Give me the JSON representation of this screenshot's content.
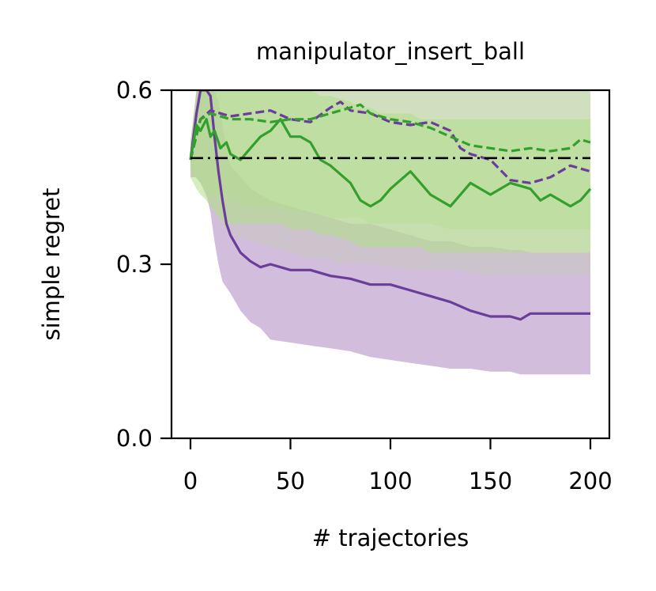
{
  "chart_data": {
    "type": "line",
    "title": "manipulator_insert_ball",
    "xlabel": "# trajectories",
    "ylabel": "simple regret",
    "xlim": [
      -10,
      210
    ],
    "ylim": [
      0,
      0.6
    ],
    "x_ticks": [
      {
        "value": 0,
        "label": "0"
      },
      {
        "value": 50,
        "label": "50"
      },
      {
        "value": 100,
        "label": "100"
      },
      {
        "value": 150,
        "label": "150"
      },
      {
        "value": 200,
        "label": "200"
      }
    ],
    "y_ticks": [
      {
        "value": 0,
        "label": "0.0"
      },
      {
        "value": 0.3,
        "label": "0.3"
      },
      {
        "value": 0.6,
        "label": "0.6"
      }
    ],
    "grid": false,
    "legend": "none",
    "colors": {
      "purple": "#6a3d9a",
      "purple_band": "#cab2d6",
      "green": "#33a02c",
      "green_band": "#b2df8a",
      "gray_band": "#c8c8c0",
      "baseline": "#000000"
    },
    "reference_line": {
      "y": 0.483,
      "style": "dash-dot",
      "color": "#000000"
    },
    "series": [
      {
        "color": "#6a3d9a",
        "style": "solid",
        "band_color": "#cab2d6",
        "band_opacity": 0.85,
        "x": [
          0,
          3,
          5,
          8,
          10,
          12,
          14,
          16,
          18,
          20,
          25,
          30,
          35,
          40,
          50,
          60,
          70,
          80,
          90,
          100,
          110,
          120,
          130,
          140,
          150,
          160,
          165,
          170,
          180,
          190,
          200
        ],
        "y": [
          0.48,
          0.56,
          0.6,
          0.6,
          0.59,
          0.52,
          0.46,
          0.41,
          0.37,
          0.35,
          0.32,
          0.305,
          0.295,
          0.3,
          0.29,
          0.29,
          0.28,
          0.275,
          0.265,
          0.265,
          0.255,
          0.245,
          0.235,
          0.22,
          0.21,
          0.21,
          0.205,
          0.215,
          0.215,
          0.215,
          0.215
        ],
        "lower": [
          0.45,
          0.45,
          0.44,
          0.42,
          0.39,
          0.34,
          0.3,
          0.27,
          0.26,
          0.25,
          0.22,
          0.2,
          0.19,
          0.17,
          0.165,
          0.16,
          0.155,
          0.15,
          0.14,
          0.135,
          0.13,
          0.125,
          0.12,
          0.12,
          0.115,
          0.115,
          0.11,
          0.11,
          0.11,
          0.11,
          0.11
        ],
        "upper": [
          0.51,
          0.6,
          0.6,
          0.6,
          0.6,
          0.6,
          0.58,
          0.54,
          0.5,
          0.47,
          0.45,
          0.43,
          0.42,
          0.41,
          0.4,
          0.39,
          0.38,
          0.37,
          0.37,
          0.36,
          0.35,
          0.34,
          0.34,
          0.33,
          0.33,
          0.325,
          0.325,
          0.32,
          0.32,
          0.32,
          0.32
        ]
      },
      {
        "color": "#6a3d9a",
        "style": "dashed",
        "band_color": "#c8c8c0",
        "band_opacity": 0.55,
        "x": [
          0,
          5,
          10,
          15,
          20,
          30,
          40,
          50,
          60,
          70,
          75,
          80,
          90,
          100,
          110,
          120,
          130,
          135,
          140,
          150,
          160,
          170,
          180,
          190,
          200
        ],
        "y": [
          0.48,
          0.55,
          0.565,
          0.56,
          0.555,
          0.56,
          0.565,
          0.55,
          0.545,
          0.57,
          0.58,
          0.565,
          0.56,
          0.545,
          0.54,
          0.545,
          0.53,
          0.5,
          0.49,
          0.48,
          0.445,
          0.44,
          0.45,
          0.47,
          0.46
        ],
        "lower": [
          0.46,
          0.44,
          0.4,
          0.37,
          0.35,
          0.34,
          0.33,
          0.32,
          0.31,
          0.31,
          0.3,
          0.3,
          0.3,
          0.295,
          0.29,
          0.29,
          0.29,
          0.29,
          0.285,
          0.28,
          0.28,
          0.28,
          0.28,
          0.28,
          0.28
        ],
        "upper": [
          0.5,
          0.6,
          0.6,
          0.6,
          0.6,
          0.6,
          0.6,
          0.6,
          0.6,
          0.6,
          0.6,
          0.6,
          0.6,
          0.6,
          0.6,
          0.6,
          0.6,
          0.6,
          0.6,
          0.6,
          0.6,
          0.6,
          0.6,
          0.6,
          0.6
        ]
      },
      {
        "color": "#33a02c",
        "style": "solid",
        "band_color": "#b2df8a",
        "band_opacity": 0.55,
        "x": [
          0,
          3,
          5,
          8,
          10,
          12,
          15,
          18,
          20,
          25,
          30,
          35,
          40,
          45,
          50,
          55,
          60,
          65,
          70,
          80,
          85,
          90,
          95,
          100,
          110,
          115,
          120,
          130,
          140,
          150,
          160,
          170,
          175,
          180,
          190,
          195,
          200
        ],
        "y": [
          0.48,
          0.54,
          0.53,
          0.55,
          0.52,
          0.53,
          0.5,
          0.51,
          0.49,
          0.48,
          0.5,
          0.52,
          0.53,
          0.55,
          0.52,
          0.52,
          0.51,
          0.48,
          0.47,
          0.44,
          0.41,
          0.4,
          0.41,
          0.43,
          0.46,
          0.44,
          0.42,
          0.4,
          0.44,
          0.42,
          0.44,
          0.43,
          0.41,
          0.42,
          0.4,
          0.41,
          0.43
        ],
        "lower": [
          0.45,
          0.43,
          0.42,
          0.41,
          0.4,
          0.39,
          0.38,
          0.37,
          0.37,
          0.37,
          0.37,
          0.37,
          0.37,
          0.37,
          0.36,
          0.36,
          0.36,
          0.35,
          0.35,
          0.34,
          0.33,
          0.33,
          0.33,
          0.33,
          0.33,
          0.33,
          0.32,
          0.32,
          0.32,
          0.32,
          0.32,
          0.32,
          0.32,
          0.32,
          0.32,
          0.32,
          0.32
        ],
        "upper": [
          0.51,
          0.6,
          0.6,
          0.6,
          0.6,
          0.6,
          0.6,
          0.6,
          0.6,
          0.6,
          0.6,
          0.6,
          0.6,
          0.6,
          0.6,
          0.6,
          0.6,
          0.59,
          0.59,
          0.58,
          0.57,
          0.57,
          0.56,
          0.56,
          0.56,
          0.55,
          0.55,
          0.55,
          0.55,
          0.55,
          0.55,
          0.55,
          0.55,
          0.55,
          0.55,
          0.55,
          0.55
        ]
      },
      {
        "color": "#33a02c",
        "style": "dashed",
        "band_color": "#b2df8a",
        "band_opacity": 0.35,
        "x": [
          0,
          5,
          10,
          20,
          30,
          40,
          50,
          60,
          70,
          80,
          85,
          90,
          100,
          110,
          120,
          130,
          140,
          150,
          160,
          170,
          180,
          190,
          195,
          200
        ],
        "y": [
          0.48,
          0.55,
          0.56,
          0.55,
          0.55,
          0.545,
          0.55,
          0.55,
          0.56,
          0.57,
          0.575,
          0.56,
          0.55,
          0.545,
          0.535,
          0.52,
          0.505,
          0.5,
          0.495,
          0.5,
          0.495,
          0.5,
          0.515,
          0.51
        ],
        "lower": [
          0.46,
          0.44,
          0.42,
          0.41,
          0.4,
          0.4,
          0.39,
          0.39,
          0.38,
          0.38,
          0.38,
          0.37,
          0.37,
          0.37,
          0.37,
          0.36,
          0.36,
          0.36,
          0.36,
          0.36,
          0.36,
          0.36,
          0.36,
          0.36
        ],
        "upper": [
          0.5,
          0.6,
          0.6,
          0.6,
          0.6,
          0.6,
          0.6,
          0.6,
          0.6,
          0.6,
          0.6,
          0.6,
          0.6,
          0.6,
          0.6,
          0.6,
          0.6,
          0.6,
          0.6,
          0.6,
          0.6,
          0.6,
          0.6,
          0.6
        ]
      }
    ]
  }
}
